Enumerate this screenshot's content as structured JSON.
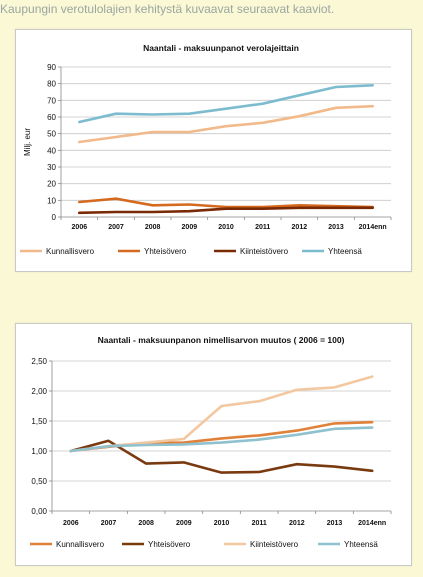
{
  "intro_text": "Kaupungin verotulolajien kehitystä kuvaavat seuraavat kaaviot.",
  "chart_data": [
    {
      "type": "line",
      "title": "Naantali - maksuunpanot verolajeittain",
      "ylabel": "Milj. eur",
      "xlabel": "",
      "ylim": [
        0,
        90
      ],
      "yticks": [
        "0",
        "10",
        "20",
        "30",
        "40",
        "50",
        "60",
        "70",
        "80",
        "90"
      ],
      "ytick_values": [
        0,
        10,
        20,
        30,
        40,
        50,
        60,
        70,
        80,
        90
      ],
      "categories": [
        "2006",
        "2007",
        "2008",
        "2009",
        "2010",
        "2011",
        "2012",
        "2013",
        "2014enn"
      ],
      "grid": true,
      "legend_position": "bottom",
      "series": [
        {
          "name": "Kunnallisvero",
          "color": "#f2b98a",
          "values": [
            45,
            48,
            51,
            51,
            54.5,
            56.5,
            60.5,
            65.5,
            66.5
          ]
        },
        {
          "name": "Yhteisövero",
          "color": "#d46a20",
          "values": [
            9,
            11,
            7,
            7.5,
            6,
            6,
            7,
            6.5,
            6
          ]
        },
        {
          "name": "Kiinteistövero",
          "color": "#7a2a05",
          "values": [
            2.5,
            3,
            3,
            3.5,
            5,
            5,
            5.5,
            5.5,
            5.5
          ]
        },
        {
          "name": "Yhteensä",
          "color": "#7dbccf",
          "values": [
            57,
            62,
            61.5,
            62,
            65,
            68,
            73,
            78,
            79
          ]
        }
      ]
    },
    {
      "type": "line",
      "title": "Naantali - maksuunpanon nimellisarvon muutos ( 2006 = 100)",
      "ylabel": "",
      "xlabel": "",
      "ylim": [
        0,
        2.5
      ],
      "yticks": [
        "0,00",
        "0,50",
        "1,00",
        "1,50",
        "2,00",
        "2,50"
      ],
      "ytick_values": [
        0,
        0.5,
        1.0,
        1.5,
        2.0,
        2.5
      ],
      "categories": [
        "2006",
        "2007",
        "2008",
        "2009",
        "2010",
        "2011",
        "2012",
        "2013",
        "2014enn"
      ],
      "grid": true,
      "legend_position": "bottom",
      "series": [
        {
          "name": "Kunnallisvero",
          "color": "#e0813a",
          "values": [
            1.0,
            1.07,
            1.13,
            1.14,
            1.21,
            1.26,
            1.34,
            1.46,
            1.48
          ]
        },
        {
          "name": "Yhteisövero",
          "color": "#7a3a10",
          "values": [
            1.0,
            1.17,
            0.79,
            0.81,
            0.64,
            0.65,
            0.78,
            0.74,
            0.67
          ]
        },
        {
          "name": "Kiinteistövero",
          "color": "#f3c8a0",
          "values": [
            1.0,
            1.08,
            1.14,
            1.2,
            1.75,
            1.83,
            2.02,
            2.06,
            2.24
          ]
        },
        {
          "name": "Yhteensä",
          "color": "#8fc1cf",
          "values": [
            1.0,
            1.08,
            1.1,
            1.11,
            1.14,
            1.19,
            1.27,
            1.37,
            1.39
          ]
        }
      ]
    }
  ]
}
